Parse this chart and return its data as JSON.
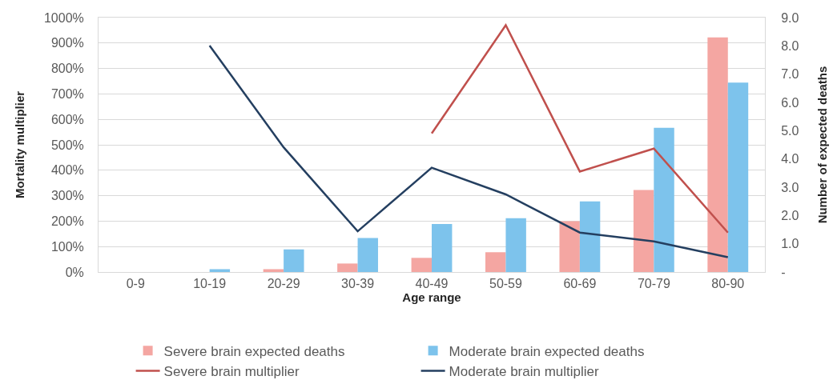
{
  "chart_data": {
    "type": "bar",
    "xlabel": "Age range",
    "ylabel": "Mortality multiplier",
    "y2label": "Number of expected deaths",
    "categories": [
      "0-9",
      "10-19",
      "20-29",
      "30-39",
      "40-49",
      "50-59",
      "60-69",
      "70-79",
      "80-90"
    ],
    "ylim": [
      0,
      1000
    ],
    "yticks": [
      {
        "value": 0,
        "label": "0%"
      },
      {
        "value": 100,
        "label": "100%"
      },
      {
        "value": 200,
        "label": "200%"
      },
      {
        "value": 300,
        "label": "300%"
      },
      {
        "value": 400,
        "label": "400%"
      },
      {
        "value": 500,
        "label": "500%"
      },
      {
        "value": 600,
        "label": "600%"
      },
      {
        "value": 700,
        "label": "700%"
      },
      {
        "value": 800,
        "label": "800%"
      },
      {
        "value": 900,
        "label": "900%"
      },
      {
        "value": 1000,
        "label": "1000%"
      }
    ],
    "y2lim": [
      0,
      9
    ],
    "y2ticks": [
      {
        "value": 0,
        "label": "-"
      },
      {
        "value": 1,
        "label": "1.0"
      },
      {
        "value": 2,
        "label": "2.0"
      },
      {
        "value": 3,
        "label": "3.0"
      },
      {
        "value": 4,
        "label": "4.0"
      },
      {
        "value": 5,
        "label": "5.0"
      },
      {
        "value": 6,
        "label": "6.0"
      },
      {
        "value": 7,
        "label": "7.0"
      },
      {
        "value": 8,
        "label": "8.0"
      },
      {
        "value": 9,
        "label": "9.0"
      }
    ],
    "series": [
      {
        "name": "Severe brain expected deaths",
        "axis": "y2",
        "color": "#f4a6a2",
        "values": [
          0,
          0,
          0.1,
          0.3,
          0.5,
          0.7,
          1.8,
          2.9,
          8.3
        ]
      },
      {
        "name": "Moderate brain expected deaths",
        "axis": "y2",
        "color": "#7dc3ec",
        "values": [
          0,
          0.1,
          0.8,
          1.2,
          1.7,
          1.9,
          2.5,
          5.1,
          6.7
        ]
      },
      {
        "name": "Severe brain multiplier",
        "type": "line",
        "color": "#c0504d",
        "values": [
          null,
          null,
          null,
          null,
          545,
          970,
          395,
          485,
          155
        ]
      },
      {
        "name": "Moderate brain multiplier",
        "type": "line",
        "color": "#243f60",
        "values": [
          null,
          890,
          490,
          160,
          410,
          305,
          155,
          120,
          58
        ]
      }
    ],
    "grid": "y",
    "legend": "bottom"
  }
}
